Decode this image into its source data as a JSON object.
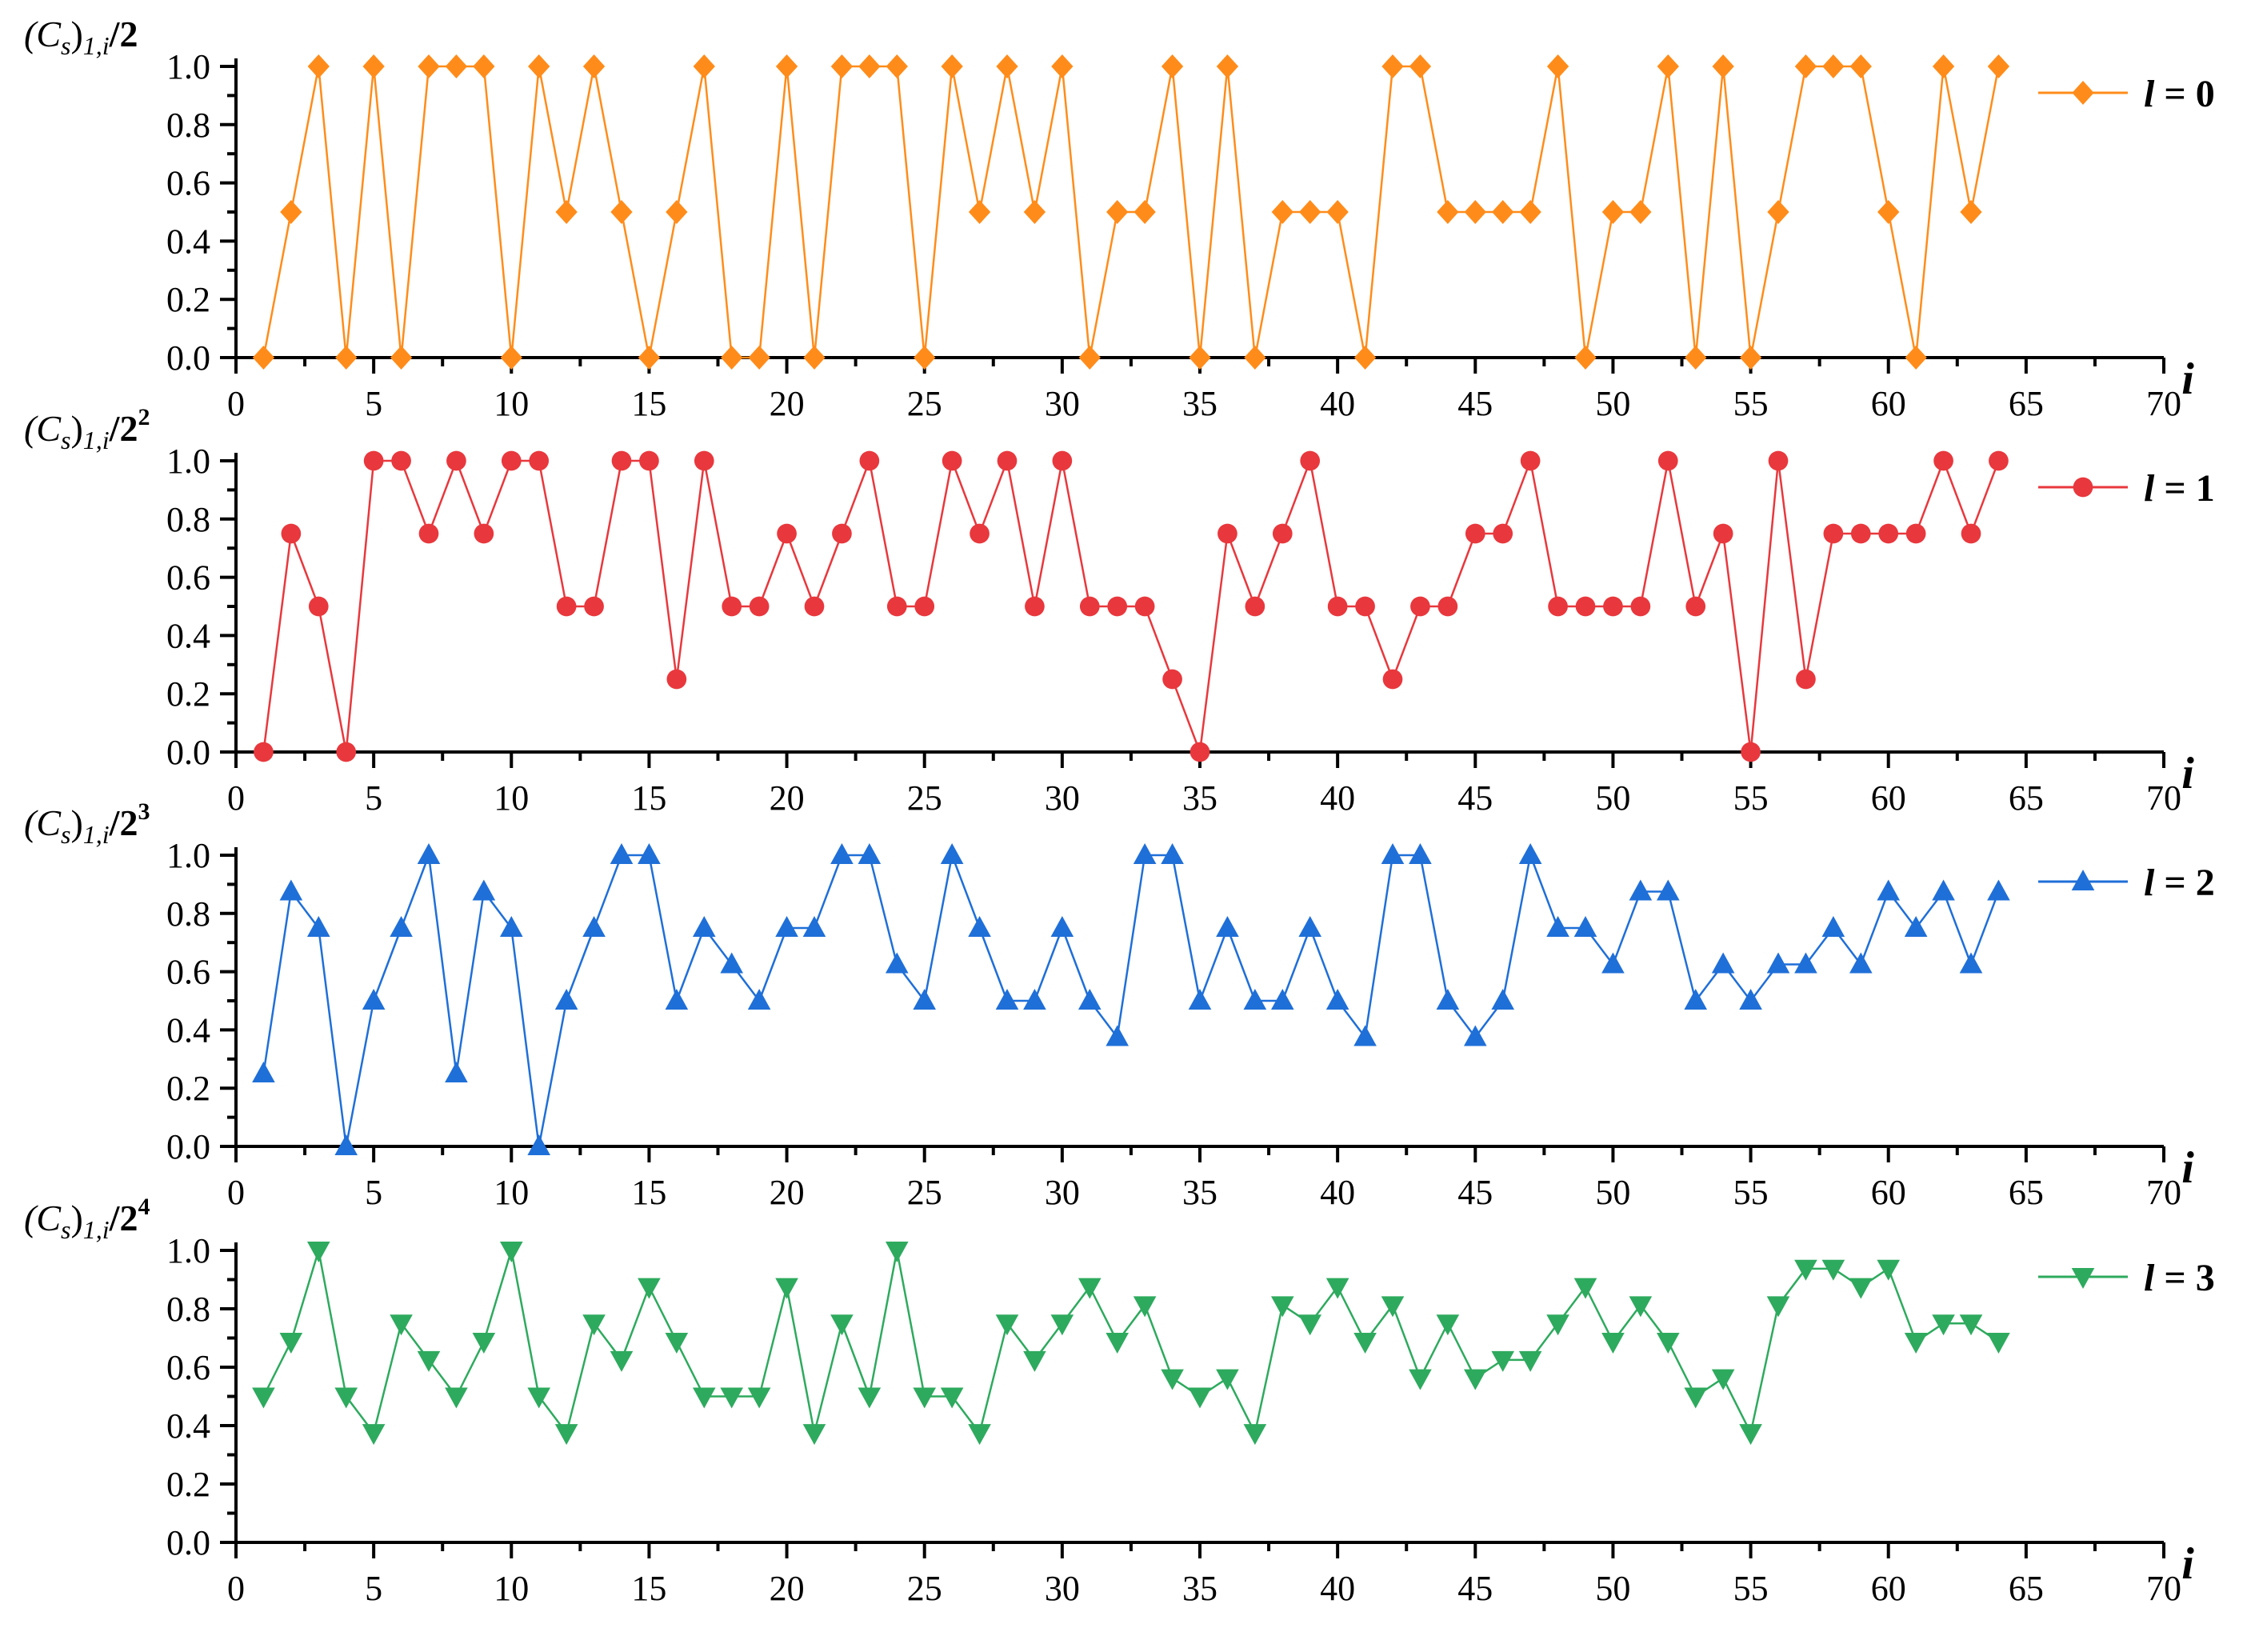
{
  "chart_data": [
    {
      "type": "line",
      "ylabel": {
        "base": "(C",
        "sub1": "s",
        "mid": ")",
        "sub2": "1,i",
        "tail": "/2",
        "sup": ""
      },
      "xlabel": "i",
      "xlim": [
        0,
        70
      ],
      "ylim": [
        0,
        1.0
      ],
      "xticks": [
        0,
        5,
        10,
        15,
        20,
        25,
        30,
        35,
        40,
        45,
        50,
        55,
        60,
        65,
        70
      ],
      "yticks": [
        0.0,
        0.2,
        0.4,
        0.6,
        0.8,
        1.0
      ],
      "ytick_labels": [
        "0.0",
        "0.2",
        "0.4",
        "0.6",
        "0.8",
        "1.0"
      ],
      "grid": false,
      "legend_position": "right",
      "series": [
        {
          "name": "l = 0",
          "legend_var": "l",
          "legend_val": " = 0",
          "color": "#FF8C1A",
          "marker": "diamond",
          "x": [
            1,
            2,
            3,
            4,
            5,
            6,
            7,
            8,
            9,
            10,
            11,
            12,
            13,
            14,
            15,
            16,
            17,
            18,
            19,
            20,
            21,
            22,
            23,
            24,
            25,
            26,
            27,
            28,
            29,
            30,
            31,
            32,
            33,
            34,
            35,
            36,
            37,
            38,
            39,
            40,
            41,
            42,
            43,
            44,
            45,
            46,
            47,
            48,
            49,
            50,
            51,
            52,
            53,
            54,
            55,
            56,
            57,
            58,
            59,
            60,
            61,
            62,
            63,
            64
          ],
          "y": [
            0,
            0.5,
            1,
            0,
            1,
            0,
            1,
            1,
            1,
            0,
            1,
            0.5,
            1,
            0.5,
            0,
            0.5,
            1,
            0,
            0,
            1,
            0,
            1,
            1,
            1,
            0,
            1,
            0.5,
            1,
            0.5,
            1,
            0,
            0.5,
            0.5,
            1,
            0,
            1,
            0,
            0.5,
            0.5,
            0.5,
            0,
            1,
            1,
            0.5,
            0.5,
            0.5,
            0.5,
            1,
            0,
            0.5,
            0.5,
            1,
            0,
            1,
            0,
            0.5,
            1,
            1,
            1,
            0.5,
            0,
            1,
            0.5,
            1
          ]
        }
      ]
    },
    {
      "type": "line",
      "ylabel": {
        "base": "(C",
        "sub1": "s",
        "mid": ")",
        "sub2": "1,i",
        "tail": "/2",
        "sup": "2"
      },
      "xlabel": "i",
      "xlim": [
        0,
        70
      ],
      "ylim": [
        0,
        1.0
      ],
      "xticks": [
        0,
        5,
        10,
        15,
        20,
        25,
        30,
        35,
        40,
        45,
        50,
        55,
        60,
        65,
        70
      ],
      "yticks": [
        0.0,
        0.2,
        0.4,
        0.6,
        0.8,
        1.0
      ],
      "ytick_labels": [
        "0.0",
        "0.2",
        "0.4",
        "0.6",
        "0.8",
        "1.0"
      ],
      "grid": false,
      "legend_position": "right",
      "series": [
        {
          "name": "l = 1",
          "legend_var": "l",
          "legend_val": " = 1",
          "color": "#E8383D",
          "marker": "circle",
          "x": [
            1,
            2,
            3,
            4,
            5,
            6,
            7,
            8,
            9,
            10,
            11,
            12,
            13,
            14,
            15,
            16,
            17,
            18,
            19,
            20,
            21,
            22,
            23,
            24,
            25,
            26,
            27,
            28,
            29,
            30,
            31,
            32,
            33,
            34,
            35,
            36,
            37,
            38,
            39,
            40,
            41,
            42,
            43,
            44,
            45,
            46,
            47,
            48,
            49,
            50,
            51,
            52,
            53,
            54,
            55,
            56,
            57,
            58,
            59,
            60,
            61,
            62,
            63,
            64
          ],
          "y": [
            0,
            0.75,
            0.5,
            0,
            1,
            1,
            0.75,
            1,
            0.75,
            1,
            1,
            0.5,
            0.5,
            1,
            1,
            0.25,
            1,
            0.5,
            0.5,
            0.75,
            0.5,
            0.75,
            1,
            0.5,
            0.5,
            1,
            0.75,
            1,
            0.5,
            1,
            0.5,
            0.5,
            0.5,
            0.25,
            0,
            0.75,
            0.5,
            0.75,
            1,
            0.5,
            0.5,
            0.25,
            0.5,
            0.5,
            0.75,
            0.75,
            1,
            0.5,
            0.5,
            0.5,
            0.5,
            1,
            0.5,
            0.75,
            0,
            1,
            0.25,
            0.75,
            0.75,
            0.75,
            0.75,
            1,
            0.75,
            1
          ]
        }
      ]
    },
    {
      "type": "line",
      "ylabel": {
        "base": "(C",
        "sub1": "s",
        "mid": ")",
        "sub2": "1,i",
        "tail": "/2",
        "sup": "3"
      },
      "xlabel": "i",
      "xlim": [
        0,
        70
      ],
      "ylim": [
        0,
        1.0
      ],
      "xticks": [
        0,
        5,
        10,
        15,
        20,
        25,
        30,
        35,
        40,
        45,
        50,
        55,
        60,
        65,
        70
      ],
      "yticks": [
        0.0,
        0.2,
        0.4,
        0.6,
        0.8,
        1.0
      ],
      "ytick_labels": [
        "0.0",
        "0.2",
        "0.4",
        "0.6",
        "0.8",
        "1.0"
      ],
      "grid": false,
      "legend_position": "right",
      "series": [
        {
          "name": "l = 2",
          "legend_var": "l",
          "legend_val": " = 2",
          "color": "#1F6FD8",
          "marker": "triangle-up",
          "x": [
            1,
            2,
            3,
            4,
            5,
            6,
            7,
            8,
            9,
            10,
            11,
            12,
            13,
            14,
            15,
            16,
            17,
            18,
            19,
            20,
            21,
            22,
            23,
            24,
            25,
            26,
            27,
            28,
            29,
            30,
            31,
            32,
            33,
            34,
            35,
            36,
            37,
            38,
            39,
            40,
            41,
            42,
            43,
            44,
            45,
            46,
            47,
            48,
            49,
            50,
            51,
            52,
            53,
            54,
            55,
            56,
            57,
            58,
            59,
            60,
            61,
            62,
            63,
            64
          ],
          "y": [
            0.25,
            0.875,
            0.75,
            0,
            0.5,
            0.75,
            1,
            0.25,
            0.875,
            0.75,
            0,
            0.5,
            0.75,
            1,
            1,
            0.5,
            0.75,
            0.625,
            0.5,
            0.75,
            0.75,
            1,
            1,
            0.625,
            0.5,
            1,
            0.75,
            0.5,
            0.5,
            0.75,
            0.5,
            0.375,
            1,
            1,
            0.5,
            0.75,
            0.5,
            0.5,
            0.75,
            0.5,
            0.375,
            1,
            1,
            0.5,
            0.375,
            0.5,
            1,
            0.75,
            0.75,
            0.625,
            0.875,
            0.875,
            0.5,
            0.625,
            0.5,
            0.625,
            0.625,
            0.75,
            0.625,
            0.875,
            0.75,
            0.875,
            0.625,
            0.875
          ]
        }
      ]
    },
    {
      "type": "line",
      "ylabel": {
        "base": "(C",
        "sub1": "s",
        "mid": ")",
        "sub2": "1,i",
        "tail": "/2",
        "sup": "4"
      },
      "xlabel": "i",
      "xlim": [
        0,
        70
      ],
      "ylim": [
        0,
        1.0
      ],
      "xticks": [
        0,
        5,
        10,
        15,
        20,
        25,
        30,
        35,
        40,
        45,
        50,
        55,
        60,
        65,
        70
      ],
      "yticks": [
        0.0,
        0.2,
        0.4,
        0.6,
        0.8,
        1.0
      ],
      "ytick_labels": [
        "0.0",
        "0.2",
        "0.4",
        "0.6",
        "0.8",
        "1.0"
      ],
      "grid": false,
      "legend_position": "right",
      "series": [
        {
          "name": "l = 3",
          "legend_var": "l",
          "legend_val": " = 3",
          "color": "#2EAA5E",
          "marker": "triangle-down",
          "x": [
            1,
            2,
            3,
            4,
            5,
            6,
            7,
            8,
            9,
            10,
            11,
            12,
            13,
            14,
            15,
            16,
            17,
            18,
            19,
            20,
            21,
            22,
            23,
            24,
            25,
            26,
            27,
            28,
            29,
            30,
            31,
            32,
            33,
            34,
            35,
            36,
            37,
            38,
            39,
            40,
            41,
            42,
            43,
            44,
            45,
            46,
            47,
            48,
            49,
            50,
            51,
            52,
            53,
            54,
            55,
            56,
            57,
            58,
            59,
            60,
            61,
            62,
            63,
            64
          ],
          "y": [
            0.5,
            0.6875,
            1,
            0.5,
            0.375,
            0.75,
            0.625,
            0.5,
            0.6875,
            1,
            0.5,
            0.375,
            0.75,
            0.625,
            0.875,
            0.6875,
            0.5,
            0.5,
            0.5,
            0.875,
            0.375,
            0.75,
            0.5,
            1,
            0.5,
            0.5,
            0.375,
            0.75,
            0.625,
            0.75,
            0.875,
            0.6875,
            0.8125,
            0.5625,
            0.5,
            0.5625,
            0.375,
            0.8125,
            0.75,
            0.875,
            0.6875,
            0.8125,
            0.5625,
            0.75,
            0.5625,
            0.625,
            0.625,
            0.75,
            0.875,
            0.6875,
            0.8125,
            0.6875,
            0.5,
            0.5625,
            0.375,
            0.8125,
            0.9375,
            0.9375,
            0.875,
            0.9375,
            0.6875,
            0.75,
            0.75,
            0.6875
          ]
        }
      ]
    }
  ]
}
